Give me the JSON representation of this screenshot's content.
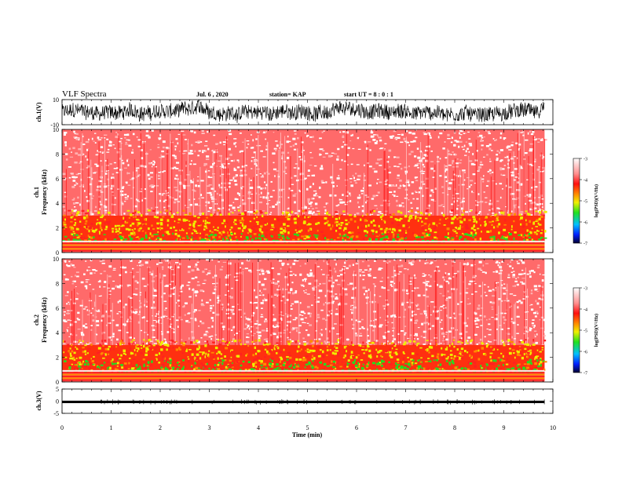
{
  "header": {
    "title": "VLF Spectra",
    "date": "Jul. 6 , 2020",
    "station": "station= KAP",
    "start": "start UT = 8 : 0 : 1"
  },
  "chart_data": [
    {
      "type": "line",
      "name": "ch1-waveform",
      "ylabel": "ch.1(V)",
      "ylim": [
        -10,
        10
      ],
      "yticks": [
        10,
        -10
      ],
      "xlim": [
        0,
        10
      ],
      "description_values": {
        "typical_range": [
          -8,
          8
        ]
      }
    },
    {
      "type": "heatmap",
      "name": "ch1-spectrogram",
      "ylabel_line1": "ch.1",
      "ylabel_line2": "Frequency (kHz)",
      "ylim": [
        0,
        10
      ],
      "yticks": [
        0,
        2,
        4,
        6,
        8,
        10
      ],
      "xlim": [
        0,
        10
      ],
      "data_extent_min": 9.83,
      "colorbar": {
        "label": "log(PSD)(V²/Hz)",
        "range": [
          -7,
          -3
        ],
        "ticks": [
          -3,
          -4,
          -5,
          -6,
          -7
        ]
      }
    },
    {
      "type": "heatmap",
      "name": "ch2-spectrogram",
      "ylabel_line1": "ch.2",
      "ylabel_line2": "Frequency (kHz)",
      "ylim": [
        0,
        10
      ],
      "yticks": [
        0,
        2,
        4,
        6,
        8,
        10
      ],
      "xlim": [
        0,
        10
      ],
      "data_extent_min": 9.83,
      "colorbar": {
        "label": "log(PSD)(V²/Hz)",
        "range": [
          -7,
          -3
        ],
        "ticks": [
          -3,
          -4,
          -5,
          -6,
          -7
        ]
      }
    },
    {
      "type": "line",
      "name": "ch3-waveform",
      "ylabel": "ch.3(V)",
      "ylim": [
        -5,
        5
      ],
      "yticks": [
        5,
        0,
        -5
      ],
      "xlim": [
        0,
        10
      ],
      "description_values": {
        "typical_range": [
          -0.8,
          0.2
        ]
      }
    }
  ],
  "x_axis": {
    "label": "Time (min)",
    "ticks": [
      "0",
      "1",
      "2",
      "3",
      "4",
      "5",
      "6",
      "7",
      "8",
      "9",
      "10"
    ]
  },
  "colors": {
    "red": "#ff2020",
    "orange": "#ff8a00",
    "yellow": "#f0f000",
    "green": "#20e020",
    "blue": "#0040ff",
    "navy": "#000030"
  }
}
